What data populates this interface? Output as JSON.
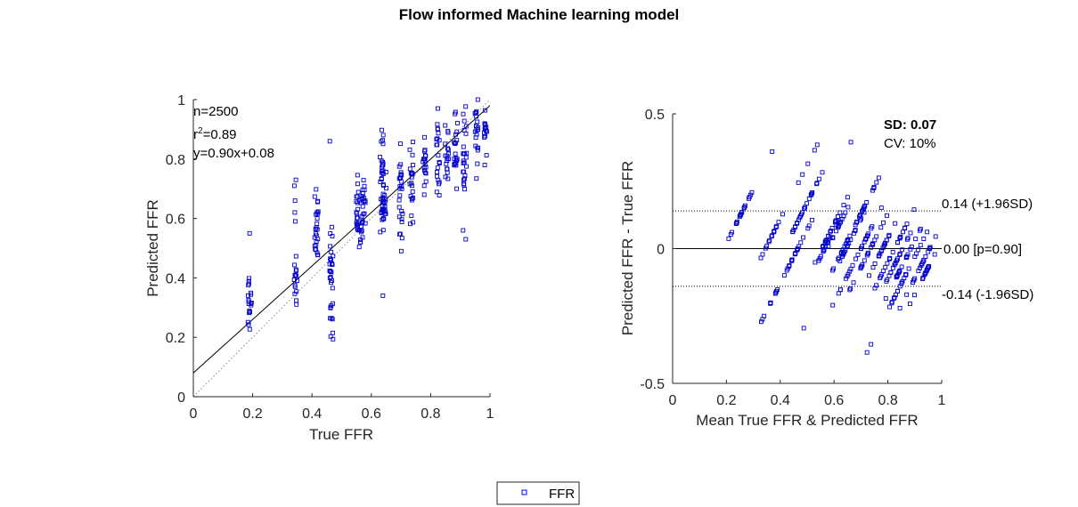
{
  "title": "Flow informed Machine learning model",
  "legend": {
    "label": "FFR",
    "marker_color": "#0000ff"
  },
  "colors": {
    "points": "#0000cc",
    "axis": "#262626",
    "line": "#000000",
    "refline": "#8c8c8c"
  },
  "chart_data": [
    {
      "type": "scatter",
      "name": "regression",
      "xlabel": "True FFR",
      "ylabel": "Predicted FFR",
      "xlim": [
        0,
        1
      ],
      "ylim": [
        0,
        1
      ],
      "xticks": [
        "0",
        "0.2",
        "0.4",
        "0.6",
        "0.8",
        "1"
      ],
      "yticks": [
        "0",
        "0.2",
        "0.4",
        "0.6",
        "0.8",
        "1"
      ],
      "annotations": {
        "n": "n=2500",
        "r2_prefix": "r",
        "r2_sup": "2",
        "r2_value": "=0.89",
        "equation": "y=0.90x+0.08"
      },
      "fit_line": {
        "slope": 0.9,
        "intercept": 0.08
      },
      "identity_line": true,
      "true_ffr_groups": [
        {
          "x": 0.19,
          "y_min": 0.16,
          "y_max": 0.45,
          "outliers": [
            0.55
          ]
        },
        {
          "x": 0.345,
          "y_min": 0.27,
          "y_max": 0.48,
          "outliers": [
            0.59,
            0.62,
            0.66,
            0.71,
            0.73
          ]
        },
        {
          "x": 0.415,
          "y_min": 0.38,
          "y_max": 0.73,
          "outliers": []
        },
        {
          "x": 0.465,
          "y_min": 0.17,
          "y_max": 0.6,
          "outliers": [
            0.86
          ]
        },
        {
          "x": 0.555,
          "y_min": 0.47,
          "y_max": 0.77,
          "outliers": []
        },
        {
          "x": 0.565,
          "y_min": 0.5,
          "y_max": 0.7,
          "outliers": []
        },
        {
          "x": 0.575,
          "y_min": 0.55,
          "y_max": 0.75,
          "outliers": []
        },
        {
          "x": 0.635,
          "y_min": 0.48,
          "y_max": 0.93,
          "outliers": [
            0.34
          ]
        },
        {
          "x": 0.645,
          "y_min": 0.55,
          "y_max": 0.82,
          "outliers": []
        },
        {
          "x": 0.7,
          "y_min": 0.49,
          "y_max": 0.86,
          "outliers": []
        },
        {
          "x": 0.735,
          "y_min": 0.58,
          "y_max": 0.88,
          "outliers": []
        },
        {
          "x": 0.78,
          "y_min": 0.64,
          "y_max": 0.91,
          "outliers": []
        },
        {
          "x": 0.825,
          "y_min": 0.66,
          "y_max": 0.97,
          "outliers": []
        },
        {
          "x": 0.855,
          "y_min": 0.7,
          "y_max": 0.95,
          "outliers": []
        },
        {
          "x": 0.885,
          "y_min": 0.7,
          "y_max": 0.98,
          "outliers": []
        },
        {
          "x": 0.915,
          "y_min": 0.62,
          "y_max": 0.98,
          "outliers": [
            0.53,
            0.56
          ]
        },
        {
          "x": 0.955,
          "y_min": 0.72,
          "y_max": 1.0,
          "outliers": []
        },
        {
          "x": 0.985,
          "y_min": 0.78,
          "y_max": 1.0,
          "outliers": []
        }
      ]
    },
    {
      "type": "scatter",
      "name": "bland-altman",
      "xlabel": "Mean True FFR & Predicted FFR",
      "ylabel": "Predicted FFR - True FFR",
      "xlim": [
        0,
        1
      ],
      "ylim": [
        -0.5,
        0.5
      ],
      "xticks": [
        "0",
        "0.2",
        "0.4",
        "0.6",
        "0.8",
        "1"
      ],
      "yticks": [
        "-0.5",
        "0",
        "0.5"
      ],
      "annotations": {
        "sd": "SD: 0.07",
        "cv": "CV: 10%"
      },
      "mean_line": {
        "value": 0.0,
        "label": "0.00 [p=0.90]"
      },
      "upper_loa": {
        "value": 0.14,
        "label": "0.14 (+1.96SD)"
      },
      "lower_loa": {
        "value": -0.14,
        "label": "-0.14 (-1.96SD)"
      },
      "true_ffr_groups": [
        0.19,
        0.345,
        0.415,
        0.465,
        0.555,
        0.565,
        0.575,
        0.635,
        0.645,
        0.7,
        0.735,
        0.78,
        0.825,
        0.855,
        0.885,
        0.915,
        0.955,
        0.985
      ]
    }
  ]
}
